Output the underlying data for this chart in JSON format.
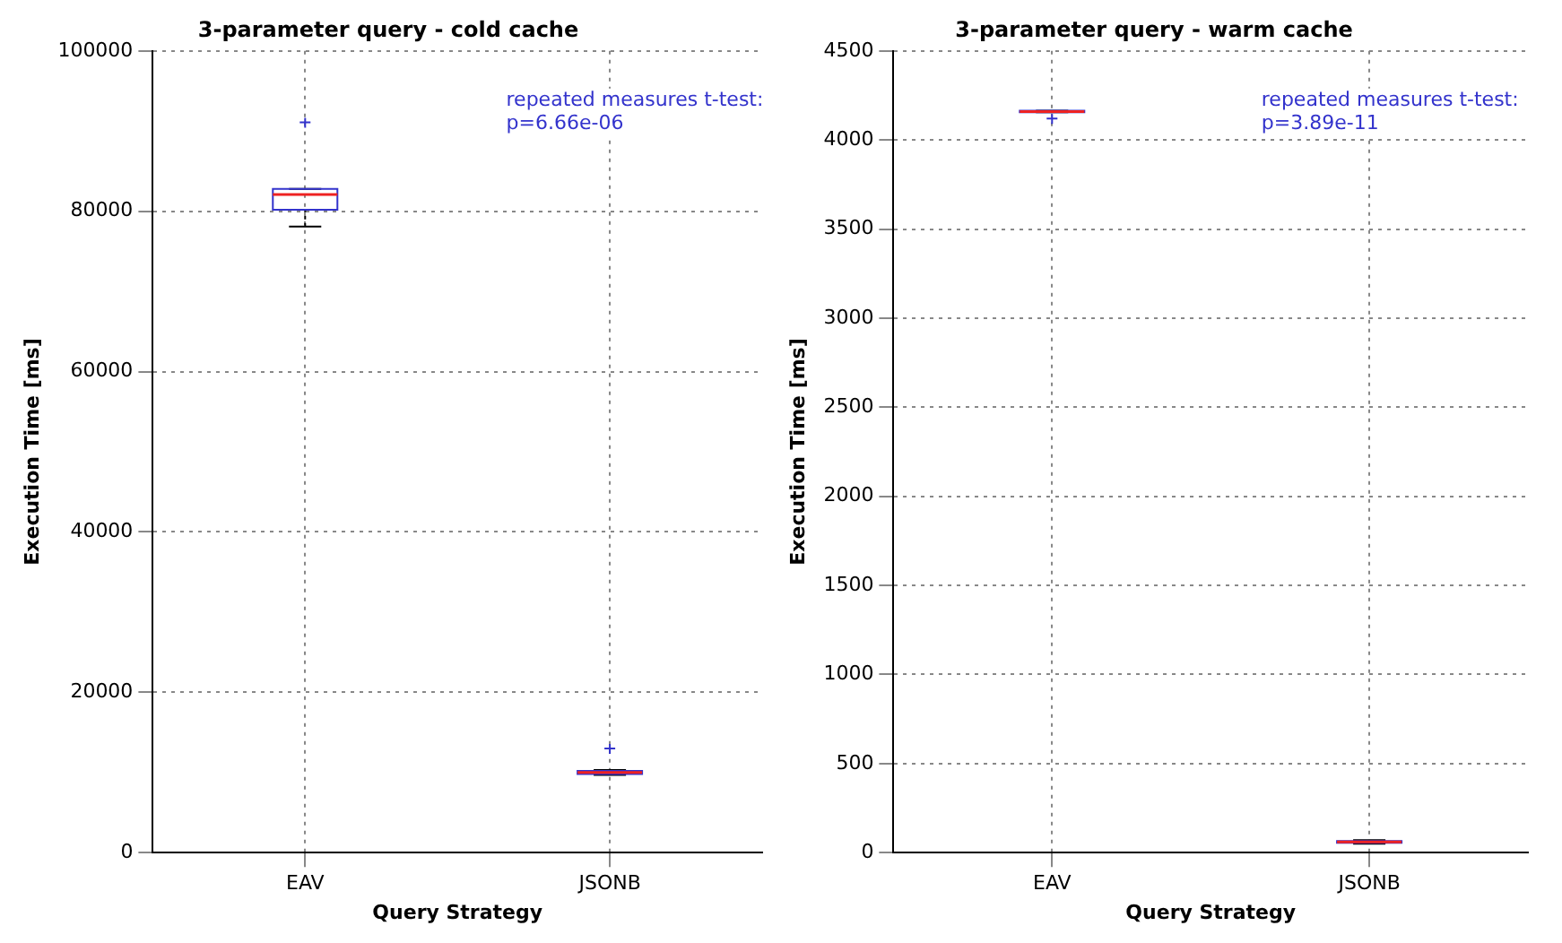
{
  "chart_data": [
    {
      "type": "box",
      "title": "3-parameter query - cold cache",
      "xlabel": "Query Strategy",
      "ylabel": "Execution Time [ms]",
      "categories": [
        "EAV",
        "JSONB"
      ],
      "boxes": [
        {
          "low": 78100,
          "q1": 80200,
          "median": 82100,
          "q3": 82800,
          "high": 82800,
          "outliers": [
            91100
          ]
        },
        {
          "low": 9700,
          "q1": 9800,
          "median": 10000,
          "q3": 10200,
          "high": 10300,
          "outliers": [
            13000
          ]
        }
      ],
      "color": "#3333cc",
      "ylim": [
        0,
        100000
      ],
      "yticks": [
        0,
        20000,
        40000,
        60000,
        80000,
        100000
      ],
      "grid": true,
      "legend": false,
      "annotations": [
        "repeated measures t-test:\np=6.66e-06"
      ]
    },
    {
      "type": "box",
      "title": "3-parameter query - warm cache",
      "xlabel": "Query Strategy",
      "ylabel": "Execution Time [ms]",
      "categories": [
        "EAV",
        "JSONB"
      ],
      "boxes": [
        {
          "low": 4155,
          "q1": 4155,
          "median": 4160,
          "q3": 4165,
          "high": 4165,
          "outliers": [
            4120
          ]
        },
        {
          "low": 50,
          "q1": 55,
          "median": 60,
          "q3": 65,
          "high": 70
        }
      ],
      "color": "#3333cc",
      "ylim": [
        0,
        4500
      ],
      "yticks": [
        0,
        500,
        1000,
        1500,
        2000,
        2500,
        3000,
        3500,
        4000,
        4500
      ],
      "grid": true,
      "legend": false,
      "annotations": [
        "repeated measures t-test:\np=3.89e-11"
      ]
    }
  ]
}
